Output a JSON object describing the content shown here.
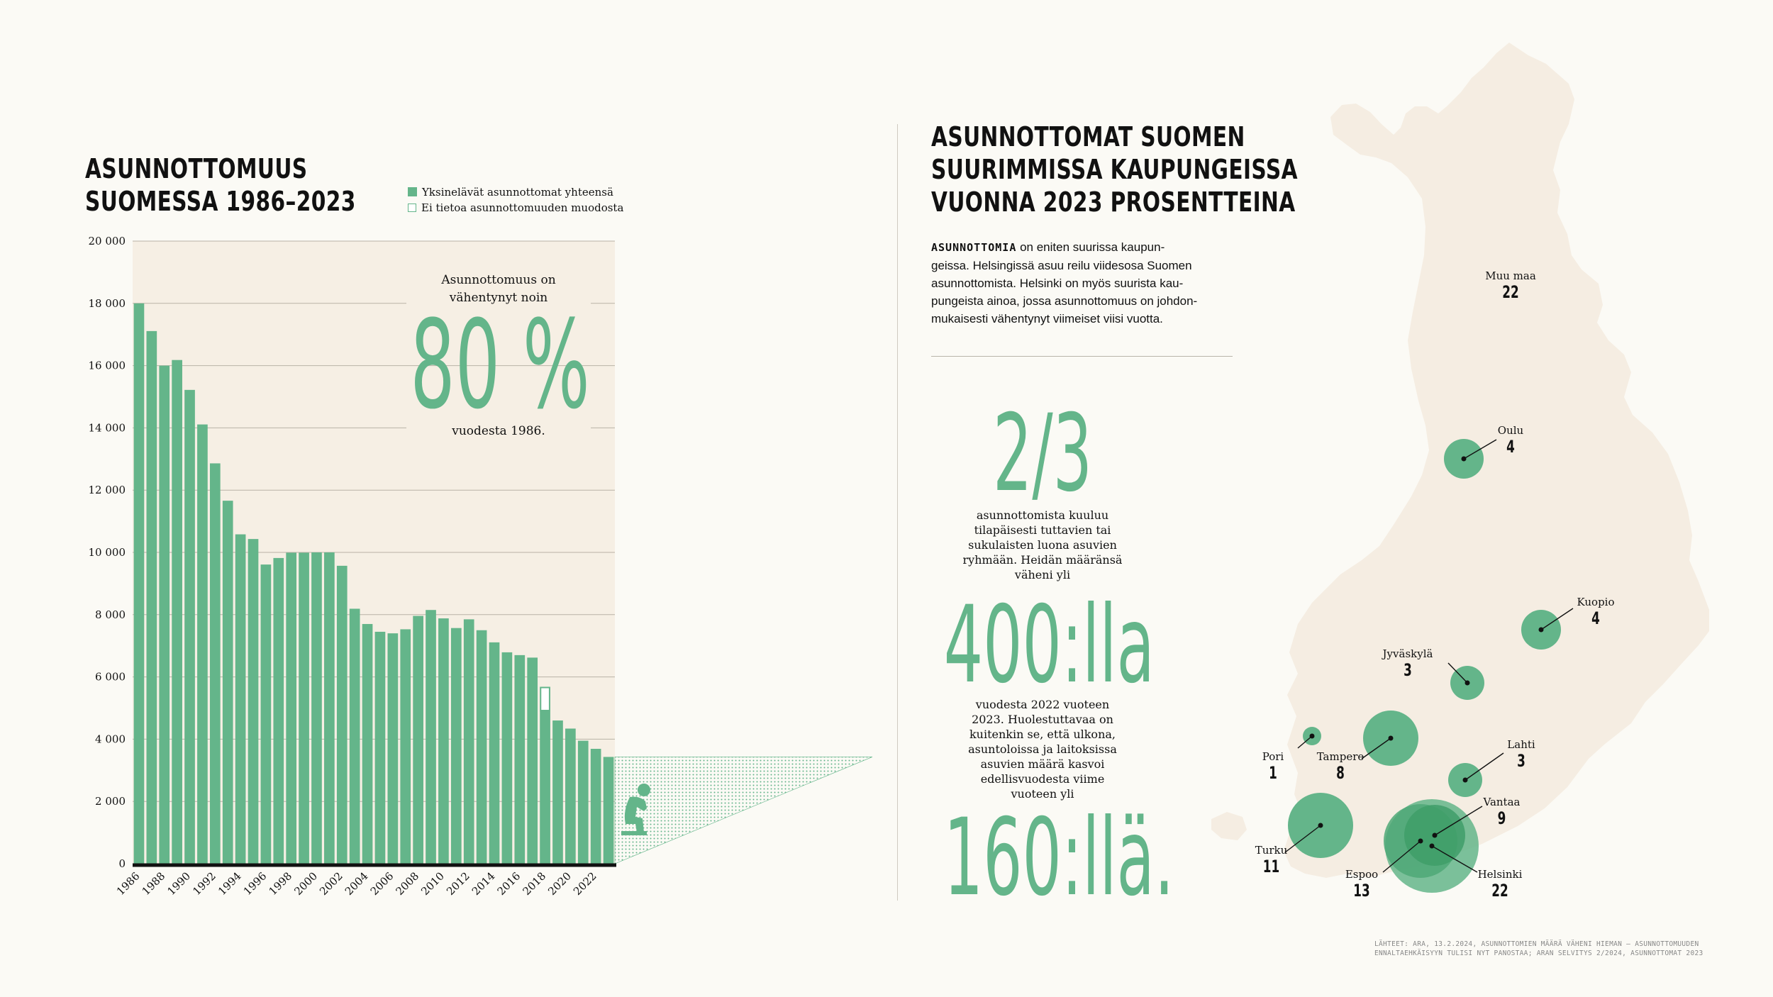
{
  "left": {
    "title_line1": "ASUNNOTTOMUUS",
    "title_line2": "SUOMESSA 1986–2023",
    "legend": [
      {
        "label": "Yksinelävät asunnottomat yhteensä",
        "color": "#64b58a"
      },
      {
        "label": "Ei tietoa asunnottomuuden muodosta",
        "color": "#ffffff"
      }
    ],
    "callout_line1": "Asunnottomuus on",
    "callout_line2": "vähentynyt noin",
    "callout_big": "80 %",
    "callout_tail": "vuodesta 1986."
  },
  "chart_data": {
    "type": "bar",
    "categories": [
      "1986",
      "1987",
      "1988",
      "1989",
      "1990",
      "1991",
      "1992",
      "1993",
      "1994",
      "1995",
      "1996",
      "1997",
      "1998",
      "1999",
      "2000",
      "2001",
      "2002",
      "2003",
      "2004",
      "2005",
      "2006",
      "2007",
      "2008",
      "2009",
      "2010",
      "2011",
      "2012",
      "2013",
      "2014",
      "2015",
      "2016",
      "2017",
      "2018",
      "2019",
      "2020",
      "2021",
      "2022",
      "2023"
    ],
    "series": [
      {
        "name": "Yksinelävät asunnottomat yhteensä",
        "values": [
          18000,
          17110,
          16000,
          16180,
          15220,
          14110,
          12860,
          11660,
          10580,
          10430,
          9610,
          9820,
          9990,
          9990,
          10000,
          10000,
          9570,
          8190,
          7700,
          7450,
          7400,
          7530,
          7960,
          8150,
          7880,
          7570,
          7850,
          7500,
          7110,
          6790,
          6700,
          6620,
          4920,
          4600,
          4340,
          3950,
          3690,
          3430
        ]
      },
      {
        "name": "Ei tietoa asunnottomuuden muodosta",
        "values": [
          0,
          0,
          0,
          0,
          0,
          0,
          0,
          0,
          0,
          0,
          0,
          0,
          0,
          0,
          0,
          0,
          0,
          0,
          0,
          0,
          0,
          0,
          0,
          0,
          0,
          0,
          0,
          0,
          0,
          0,
          0,
          0,
          740,
          0,
          0,
          0,
          0,
          0
        ]
      }
    ],
    "tick_labels_x": [
      "1986",
      "1988",
      "1990",
      "1992",
      "1994",
      "1996",
      "1998",
      "2000",
      "2002",
      "2004",
      "2006",
      "2008",
      "2010",
      "2012",
      "2014",
      "2016",
      "2018",
      "2020",
      "2022"
    ],
    "tick_labels_y": [
      "0",
      "2 000",
      "4 000",
      "6 000",
      "8 000",
      "10 000",
      "12 000",
      "14 000",
      "16 000",
      "18 000",
      "20 000"
    ],
    "ylim": [
      0,
      20000
    ],
    "grid": true,
    "colors": {
      "bar": "#64b58a",
      "plot_bg": "#f6efe4",
      "grid": "#b9b2a6"
    }
  },
  "middle": {
    "title_line1": "ASUNNOTTOMAT SUOMEN",
    "title_line2": "SUURIMMISSA KAUPUNGEISSA",
    "title_line3": "VUONNA 2023 PROSENTTEINA",
    "intro_bold": "ASUNNOTTOMIA",
    "intro_lines": [
      " on eniten suurissa kaupun-",
      "geissa. Helsingissä asuu reilu viidesosa Suomen",
      "asunnottomista. Helsinki on myös suurista kau-",
      "pungeista ainoa, jossa asunnottomuus on johdon-",
      "mukaisesti vähentynyt viimeiset viisi vuotta."
    ],
    "big1": "2/3",
    "text1": [
      "asunnottomista kuuluu",
      "tilapäisesti tuttavien tai",
      "sukulaisten luona asuvien",
      "ryhmään. Heidän määränsä",
      "väheni yli"
    ],
    "big2": "400:lla",
    "text2": [
      "vuodesta 2022 vuoteen",
      "2023. Huolestuttavaa on",
      "kuitenkin se, että ulkona,",
      "asuntoloissa ja laitoksissa",
      "asuvien määrä kasvoi",
      "edellisvuodesta viime",
      "vuoteen yli"
    ],
    "big3": "160:llä."
  },
  "map": {
    "cities": [
      {
        "name": "Muu maa",
        "value": "22"
      },
      {
        "name": "Oulu",
        "value": "4"
      },
      {
        "name": "Kuopio",
        "value": "4"
      },
      {
        "name": "Jyväskylä",
        "value": "3"
      },
      {
        "name": "Lahti",
        "value": "3"
      },
      {
        "name": "Pori",
        "value": "1"
      },
      {
        "name": "Tampere",
        "value": "8"
      },
      {
        "name": "Vantaa",
        "value": "9"
      },
      {
        "name": "Turku",
        "value": "11"
      },
      {
        "name": "Espoo",
        "value": "13"
      },
      {
        "name": "Helsinki",
        "value": "22"
      }
    ],
    "colors": {
      "land": "#f5ede2",
      "circle": "#64b58a",
      "circle_dark": "#3f9e68"
    }
  },
  "sources": {
    "line1": "LÄHTEET: ARA, 13.2.2024, ASUNNOTTOMIEN MÄÄRÄ VÄHENI HIEMAN – ASUNNOTTOMUUDEN",
    "line2": "ENNALTAEHKÄISYYN TULISI NYT PANOSTAA; ARAN SELVITYS 2/2024, ASUNNOTTOMAT 2023"
  }
}
